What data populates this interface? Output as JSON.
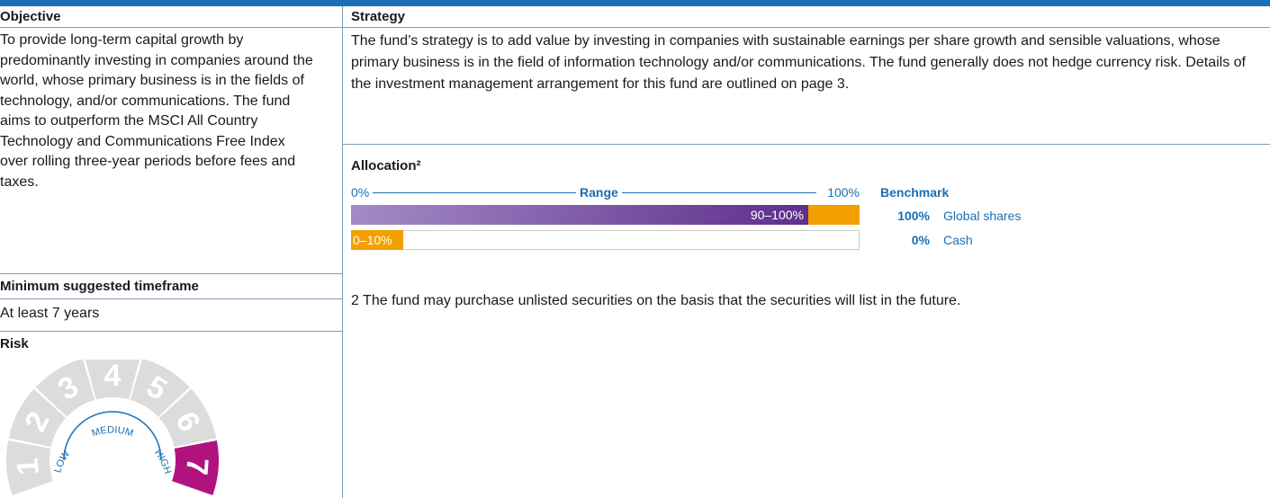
{
  "objective": {
    "heading": "Objective",
    "text": "To provide long-term capital growth by predominantly investing in companies around the world, whose primary business is in the fields of technology, and/or communications. The fund aims to outperform the MSCI All Country Technology and Communications Free Index over rolling three-year periods before fees and taxes."
  },
  "timeframe": {
    "heading": "Minimum suggested timeframe",
    "text": "At least 7 years"
  },
  "risk": {
    "heading": "Risk",
    "levels": [
      "1",
      "2",
      "3",
      "4",
      "5",
      "6",
      "7"
    ],
    "bands": [
      "LOW",
      "MEDIUM",
      "HIGH"
    ],
    "rating": 7
  },
  "strategy": {
    "heading": "Strategy",
    "text": "The fund’s strategy is to add value by investing in companies with sustainable earnings per share growth and sensible valuations, whose primary business is in the field of information technology and/or communications. The fund generally does not hedge currency risk. Details of the investment management arrangement for this fund are outlined on page 3."
  },
  "allocation": {
    "heading": "Allocation²",
    "axis": {
      "start": "0%",
      "middle": "Range",
      "end": "100%"
    },
    "benchmark_heading": "Benchmark",
    "rows": [
      {
        "range": "90–100%",
        "benchmark": "100%",
        "asset": "Global shares"
      },
      {
        "range": "0–10%",
        "benchmark": "0%",
        "asset": "Cash"
      }
    ]
  },
  "footnote": "2 The fund may purchase unlisted securities on the basis that the securities will list in the future."
}
